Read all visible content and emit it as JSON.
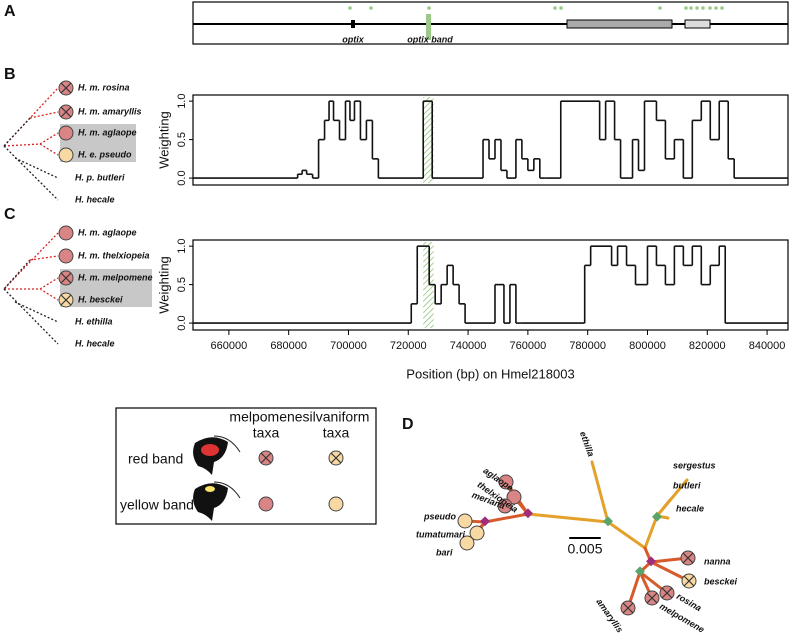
{
  "panel_labels": [
    "A",
    "B",
    "C",
    "D"
  ],
  "gene_track": {
    "labels": [
      "optix",
      "optix band"
    ]
  },
  "trees": {
    "B": [
      "H. m. rosina",
      "H. m. amaryllis",
      "H. m. aglaope",
      "H. e. pseudo",
      "H. p. butleri",
      "H. hecale"
    ],
    "C": [
      "H. m. aglaope",
      "H. m. thelxiopeia",
      "H. m. melpomene",
      "H. besckei",
      "H. ethilla",
      "H. hecale"
    ]
  },
  "chart_data": [
    {
      "type": "line",
      "ylabel": "Weighting",
      "x": [
        648000,
        683000,
        684500,
        686000,
        688000,
        690000,
        692000,
        693500,
        695000,
        697000,
        699000,
        700500,
        702000,
        704000,
        706000,
        708000,
        710000,
        725000,
        728000,
        745000,
        747000,
        749000,
        751000,
        753000,
        756000,
        758000,
        760000,
        762000,
        764000,
        766000,
        771000,
        784000,
        786000,
        789000,
        791000,
        795000,
        797000,
        799000,
        803000,
        806000,
        809000,
        812000,
        815000,
        818000,
        821000,
        824000,
        827000,
        829000,
        847000
      ],
      "series": [
        {
          "color": "#111111",
          "values": [
            0,
            0.05,
            0.1,
            0.05,
            0,
            0.5,
            0.75,
            1.0,
            0.75,
            0.5,
            1.0,
            0.75,
            1.0,
            0.5,
            0.75,
            0.25,
            0,
            1.0,
            0,
            0.5,
            0.25,
            0.5,
            0.1,
            0,
            0.5,
            0.25,
            0.1,
            0.25,
            0,
            0,
            1.0,
            0.5,
            1.0,
            0.5,
            0,
            0.5,
            0.1,
            1.0,
            0.75,
            0.25,
            0.5,
            0,
            0.75,
            1.0,
            0.5,
            1.0,
            0.25,
            0,
            0
          ]
        }
      ],
      "optix_band": [
        725000,
        728500
      ],
      "xlim": [
        648000,
        847000
      ],
      "ylim": [
        -0.09,
        1.08
      ],
      "yticks": [
        {
          "value": 0,
          "label": "0.0"
        },
        {
          "value": 0.5,
          "label": "0.5"
        },
        {
          "value": 1,
          "label": "1.0"
        }
      ]
    },
    {
      "type": "line",
      "ylabel": "Weighting",
      "xlabel": "Position (bp) on Hmel218003",
      "x": [
        648000,
        721000,
        723000,
        727000,
        729000,
        731000,
        733000,
        735000,
        737000,
        739000,
        749000,
        752000,
        754000,
        756000,
        758000,
        779000,
        781000,
        788000,
        790000,
        793000,
        796000,
        800000,
        803000,
        806000,
        809000,
        812000,
        815000,
        818000,
        821000,
        824000,
        826000,
        847000
      ],
      "series": [
        {
          "color": "#111111",
          "values": [
            0,
            0.25,
            1.0,
            0.5,
            0.25,
            0.5,
            0.75,
            0.5,
            0.25,
            0,
            0.5,
            0,
            0.5,
            0,
            0,
            0.75,
            1.0,
            0.75,
            1.0,
            0.75,
            0.5,
            1.0,
            0.75,
            0.5,
            1.0,
            0.75,
            1.0,
            0.5,
            0.75,
            1.0,
            0,
            0
          ]
        }
      ],
      "optix_band": [
        725000,
        728500
      ],
      "xlim": [
        648000,
        847000
      ],
      "ylim": [
        -0.09,
        1.08
      ],
      "xticks": [
        660000,
        680000,
        700000,
        720000,
        740000,
        760000,
        780000,
        800000,
        820000,
        840000
      ],
      "yticks": [
        {
          "value": 0,
          "label": "0.0"
        },
        {
          "value": 0.5,
          "label": "0.5"
        },
        {
          "value": 1,
          "label": "1.0"
        }
      ]
    }
  ],
  "legend_box": {
    "columns": [
      [
        "melpomene",
        "taxa"
      ],
      [
        "silvaniform",
        "taxa"
      ]
    ],
    "rows": [
      "red band",
      "yellow band"
    ]
  },
  "tree_d": {
    "tips": [
      "aglaope",
      "thelxiopeia",
      "meriana",
      "pseudo",
      "tumatumari",
      "bari",
      "ethilla",
      "sergestus",
      "butleri",
      "hecale",
      "nanna",
      "besckei",
      "rosina",
      "melpomene",
      "amaryllis"
    ],
    "scale_label": "0.005"
  }
}
